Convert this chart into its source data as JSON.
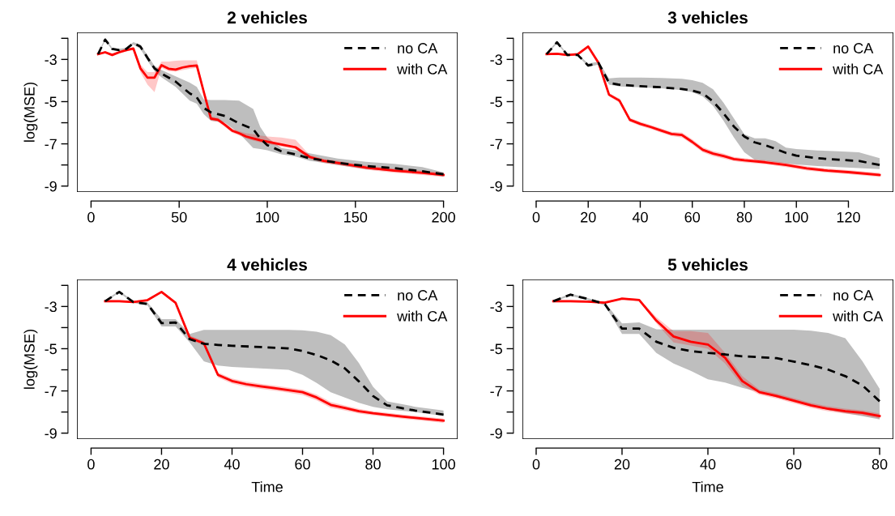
{
  "chart_data": [
    {
      "type": "line",
      "title": "2 vehicles",
      "ylabel": "log(MSE)",
      "xlim": [
        -8,
        208
      ],
      "xticks": [
        0,
        50,
        100,
        150,
        200
      ],
      "ylim": [
        -9.28,
        -1.72
      ],
      "yticks": [
        {
          "value": -2,
          "label": null
        },
        -3,
        {
          "value": -4,
          "label": null
        },
        -5,
        {
          "value": -6,
          "label": null
        },
        -7,
        {
          "value": -8,
          "label": null
        },
        -9
      ],
      "legend": "top right",
      "grid": false,
      "marker": "none",
      "series": [
        {
          "name": "no CA",
          "color": "#000000",
          "line_style": "dashed",
          "x": [
            4,
            8,
            12,
            16,
            20,
            24,
            28,
            32,
            36,
            40,
            48,
            56,
            60,
            64,
            68,
            76,
            84,
            92,
            96,
            100,
            108,
            116,
            124,
            140,
            156,
            172,
            188,
            200
          ],
          "values": [
            -2.75,
            -2.06,
            -2.5,
            -2.56,
            -2.5,
            -2.23,
            -2.39,
            -2.92,
            -3.42,
            -3.67,
            -4.05,
            -4.61,
            -4.8,
            -5.3,
            -5.51,
            -5.68,
            -6.03,
            -6.3,
            -6.74,
            -7.06,
            -7.35,
            -7.5,
            -7.68,
            -7.9,
            -8.05,
            -8.15,
            -8.3,
            -8.44
          ],
          "lower": [
            -2.8,
            -2.1,
            -2.55,
            -2.6,
            -2.55,
            -2.3,
            -2.5,
            -3.05,
            -3.55,
            -3.85,
            -4.3,
            -4.95,
            -5.1,
            -5.6,
            -5.9,
            -6.0,
            -6.5,
            -7.2,
            -7.25,
            -7.3,
            -7.5,
            -7.6,
            -7.8,
            -8.0,
            -8.2,
            -8.3,
            -8.4,
            -8.55
          ],
          "upper": [
            -2.7,
            -2.0,
            -2.45,
            -2.5,
            -2.45,
            -2.18,
            -2.3,
            -2.8,
            -3.3,
            -3.5,
            -3.8,
            -4.1,
            -4.3,
            -4.9,
            -4.92,
            -4.92,
            -4.95,
            -5.35,
            -6.2,
            -6.7,
            -7.2,
            -7.3,
            -7.45,
            -7.7,
            -7.85,
            -7.95,
            -8.1,
            -8.35
          ]
        },
        {
          "name": "with CA",
          "color": "#ff0000",
          "line_style": "solid",
          "x": [
            4,
            8,
            12,
            16,
            20,
            24,
            28,
            32,
            36,
            40,
            44,
            48,
            52,
            56,
            60,
            64,
            68,
            72,
            76,
            80,
            84,
            88,
            92,
            96,
            100,
            108,
            116,
            124,
            132,
            140,
            156,
            172,
            188,
            200
          ],
          "values": [
            -2.75,
            -2.66,
            -2.79,
            -2.66,
            -2.56,
            -2.48,
            -3.42,
            -3.86,
            -3.86,
            -3.27,
            -3.44,
            -3.48,
            -3.38,
            -3.32,
            -3.29,
            -4.55,
            -5.8,
            -5.86,
            -6.1,
            -6.37,
            -6.5,
            -6.65,
            -6.74,
            -6.83,
            -6.9,
            -7.03,
            -7.16,
            -7.62,
            -7.81,
            -7.9,
            -8.12,
            -8.27,
            -8.37,
            -8.47
          ],
          "lower": [
            -2.8,
            -2.72,
            -2.85,
            -2.72,
            -2.62,
            -2.55,
            -3.6,
            -4.2,
            -4.55,
            -3.4,
            -3.55,
            -3.58,
            -3.5,
            -3.45,
            -3.4,
            -4.7,
            -5.9,
            -5.95,
            -6.2,
            -6.47,
            -6.6,
            -6.75,
            -6.84,
            -6.93,
            -7.0,
            -7.13,
            -7.26,
            -7.72,
            -7.9,
            -8.0,
            -8.22,
            -8.37,
            -8.47,
            -8.57
          ],
          "upper": [
            -2.7,
            -2.6,
            -2.73,
            -2.6,
            -2.5,
            -2.42,
            -3.25,
            -3.6,
            -3.6,
            -3.1,
            -3.1,
            -3.06,
            -3.04,
            -3.04,
            -3.04,
            -4.4,
            -5.7,
            -5.76,
            -6.0,
            -6.27,
            -6.4,
            -6.5,
            -6.55,
            -6.6,
            -6.65,
            -6.7,
            -6.8,
            -7.52,
            -7.72,
            -7.8,
            -8.02,
            -8.17,
            -8.27,
            -8.37
          ]
        }
      ]
    },
    {
      "type": "line",
      "title": "3 vehicles",
      "xlim": [
        -5.28,
        137.28
      ],
      "xticks": [
        0,
        20,
        40,
        60,
        80,
        100,
        120
      ],
      "ylim": [
        -9.28,
        -1.72
      ],
      "yticks": [
        {
          "value": -2,
          "label": null
        },
        -3,
        {
          "value": -4,
          "label": null
        },
        -5,
        {
          "value": -6,
          "label": null
        },
        -7,
        {
          "value": -8,
          "label": null
        },
        -9
      ],
      "legend": "top right",
      "grid": false,
      "marker": "none",
      "series": [
        {
          "name": "no CA",
          "color": "#000000",
          "line_style": "dashed",
          "x": [
            4,
            8,
            12,
            16,
            20,
            24,
            28,
            32,
            40,
            48,
            56,
            60,
            64,
            68,
            72,
            76,
            80,
            84,
            88,
            92,
            96,
            100,
            108,
            116,
            124,
            132
          ],
          "values": [
            -2.75,
            -2.19,
            -2.79,
            -2.79,
            -3.29,
            -3.17,
            -4.11,
            -4.2,
            -4.27,
            -4.32,
            -4.4,
            -4.48,
            -4.61,
            -4.99,
            -5.55,
            -6.18,
            -6.65,
            -6.93,
            -7.06,
            -7.24,
            -7.43,
            -7.56,
            -7.68,
            -7.75,
            -7.81,
            -8.0
          ],
          "lower": [
            -2.78,
            -2.25,
            -2.82,
            -2.82,
            -3.35,
            -3.25,
            -4.2,
            -4.28,
            -4.32,
            -4.37,
            -4.45,
            -4.55,
            -4.75,
            -5.2,
            -5.9,
            -6.7,
            -7.4,
            -7.75,
            -7.8,
            -7.88,
            -7.93,
            -7.98,
            -8.05,
            -8.1,
            -8.15,
            -8.2
          ],
          "upper": [
            -2.72,
            -2.12,
            -2.75,
            -2.75,
            -3.2,
            -3.1,
            -3.9,
            -3.86,
            -3.86,
            -3.88,
            -3.92,
            -3.98,
            -4.11,
            -4.42,
            -5.05,
            -5.8,
            -6.55,
            -6.74,
            -6.74,
            -6.87,
            -7.18,
            -7.25,
            -7.31,
            -7.35,
            -7.4,
            -7.68
          ]
        },
        {
          "name": "with CA",
          "color": "#ff0000",
          "line_style": "solid",
          "x": [
            4,
            8,
            12,
            16,
            20,
            24,
            28,
            32,
            36,
            40,
            44,
            48,
            52,
            56,
            60,
            64,
            68,
            72,
            76,
            80,
            88,
            96,
            104,
            112,
            120,
            132
          ],
          "values": [
            -2.75,
            -2.73,
            -2.79,
            -2.75,
            -2.39,
            -3.17,
            -4.67,
            -4.95,
            -5.86,
            -6.05,
            -6.2,
            -6.37,
            -6.53,
            -6.58,
            -6.91,
            -7.28,
            -7.46,
            -7.58,
            -7.72,
            -7.78,
            -7.87,
            -8.0,
            -8.16,
            -8.27,
            -8.34,
            -8.47
          ],
          "lower": [
            -2.8,
            -2.78,
            -2.84,
            -2.8,
            -2.44,
            -3.22,
            -4.75,
            -5.05,
            -5.95,
            -6.15,
            -6.3,
            -6.47,
            -6.63,
            -6.7,
            -7.03,
            -7.4,
            -7.58,
            -7.7,
            -7.82,
            -7.88,
            -7.97,
            -8.1,
            -8.26,
            -8.37,
            -8.44,
            -8.57
          ],
          "upper": [
            -2.7,
            -2.68,
            -2.74,
            -2.7,
            -2.34,
            -3.12,
            -4.59,
            -4.85,
            -5.77,
            -5.95,
            -6.1,
            -6.27,
            -6.43,
            -6.46,
            -6.79,
            -7.16,
            -7.34,
            -7.46,
            -7.62,
            -7.68,
            -7.77,
            -7.9,
            -8.06,
            -8.17,
            -8.24,
            -8.37
          ]
        }
      ]
    },
    {
      "type": "line",
      "title": "4 vehicles",
      "xlabel": "Time",
      "ylabel": "log(MSE)",
      "xlim": [
        -4,
        104
      ],
      "xticks": [
        0,
        20,
        40,
        60,
        80,
        100
      ],
      "ylim": [
        -9.28,
        -1.72
      ],
      "yticks": [
        {
          "value": -2,
          "label": null
        },
        -3,
        {
          "value": -4,
          "label": null
        },
        -5,
        {
          "value": -6,
          "label": null
        },
        -7,
        {
          "value": -8,
          "label": null
        },
        -9
      ],
      "legend": "top right",
      "grid": false,
      "marker": "none",
      "series": [
        {
          "name": "no CA",
          "color": "#000000",
          "line_style": "dashed",
          "x": [
            4,
            8,
            12,
            16,
            20,
            24,
            28,
            32,
            36,
            40,
            48,
            56,
            60,
            64,
            68,
            72,
            76,
            80,
            84,
            88,
            92,
            100
          ],
          "values": [
            -2.75,
            -2.31,
            -2.79,
            -2.88,
            -3.79,
            -3.76,
            -4.55,
            -4.77,
            -4.82,
            -4.86,
            -4.92,
            -4.99,
            -5.11,
            -5.3,
            -5.55,
            -5.93,
            -6.55,
            -7.24,
            -7.68,
            -7.81,
            -7.93,
            -8.12
          ],
          "lower": [
            -2.78,
            -2.35,
            -2.83,
            -2.95,
            -3.95,
            -3.95,
            -4.7,
            -5.6,
            -5.8,
            -5.86,
            -5.93,
            -6.0,
            -6.24,
            -6.62,
            -7.06,
            -7.31,
            -7.56,
            -7.75,
            -7.87,
            -7.94,
            -8.0,
            -8.19
          ],
          "upper": [
            -2.72,
            -2.25,
            -2.75,
            -2.8,
            -3.6,
            -3.6,
            -4.3,
            -4.11,
            -4.11,
            -4.11,
            -4.11,
            -4.11,
            -4.13,
            -4.2,
            -4.36,
            -4.8,
            -5.68,
            -6.8,
            -7.5,
            -7.62,
            -7.75,
            -7.93
          ]
        },
        {
          "name": "with CA",
          "color": "#ff0000",
          "line_style": "solid",
          "x": [
            4,
            8,
            12,
            16,
            20,
            24,
            28,
            32,
            36,
            40,
            44,
            48,
            52,
            56,
            60,
            64,
            68,
            72,
            76,
            80,
            88,
            100
          ],
          "values": [
            -2.75,
            -2.75,
            -2.79,
            -2.7,
            -2.31,
            -2.83,
            -4.48,
            -4.74,
            -6.24,
            -6.53,
            -6.68,
            -6.78,
            -6.87,
            -6.96,
            -7.06,
            -7.31,
            -7.66,
            -7.81,
            -7.96,
            -8.06,
            -8.21,
            -8.41
          ],
          "lower": [
            -2.8,
            -2.8,
            -2.84,
            -2.75,
            -2.36,
            -2.88,
            -4.58,
            -4.84,
            -6.36,
            -6.65,
            -6.8,
            -6.9,
            -6.99,
            -7.08,
            -7.2,
            -7.45,
            -7.8,
            -7.93,
            -8.07,
            -8.16,
            -8.31,
            -8.51
          ],
          "upper": [
            -2.7,
            -2.7,
            -2.74,
            -2.65,
            -2.26,
            -2.78,
            -4.38,
            -4.64,
            -6.12,
            -6.41,
            -6.56,
            -6.66,
            -6.75,
            -6.84,
            -6.94,
            -7.17,
            -7.52,
            -7.69,
            -7.85,
            -7.96,
            -8.11,
            -8.31
          ]
        }
      ]
    },
    {
      "type": "line",
      "title": "5 vehicles",
      "xlabel": "Time",
      "xlim": [
        -3.2,
        83.2
      ],
      "xticks": [
        0,
        20,
        40,
        60,
        80
      ],
      "ylim": [
        -9.28,
        -1.72
      ],
      "yticks": [
        {
          "value": -2,
          "label": null
        },
        -3,
        {
          "value": -4,
          "label": null
        },
        -5,
        {
          "value": -6,
          "label": null
        },
        -7,
        {
          "value": -8,
          "label": null
        },
        -9
      ],
      "legend": "top right",
      "grid": false,
      "marker": "none",
      "series": [
        {
          "name": "no CA",
          "color": "#000000",
          "line_style": "dashed",
          "x": [
            4,
            8,
            12,
            16,
            20,
            24,
            28,
            32,
            36,
            40,
            44,
            48,
            52,
            56,
            60,
            64,
            68,
            72,
            76,
            80
          ],
          "values": [
            -2.75,
            -2.44,
            -2.64,
            -2.89,
            -4.05,
            -4.05,
            -4.67,
            -4.96,
            -5.11,
            -5.2,
            -5.27,
            -5.36,
            -5.4,
            -5.45,
            -5.61,
            -5.78,
            -5.99,
            -6.3,
            -6.74,
            -7.49
          ],
          "lower": [
            -2.78,
            -2.5,
            -2.7,
            -2.95,
            -4.3,
            -4.3,
            -5.2,
            -5.7,
            -6.05,
            -6.45,
            -6.6,
            -6.85,
            -7.05,
            -7.3,
            -7.5,
            -7.7,
            -7.9,
            -8.05,
            -8.2,
            -8.35
          ],
          "upper": [
            -2.72,
            -2.38,
            -2.6,
            -2.82,
            -3.8,
            -3.75,
            -4.08,
            -4.1,
            -4.1,
            -4.1,
            -4.1,
            -4.1,
            -4.1,
            -4.1,
            -4.1,
            -4.15,
            -4.25,
            -4.5,
            -5.6,
            -6.9
          ]
        },
        {
          "name": "with CA",
          "color": "#ff0000",
          "line_style": "solid",
          "x": [
            4,
            8,
            12,
            16,
            20,
            24,
            28,
            32,
            36,
            40,
            44,
            48,
            52,
            56,
            60,
            64,
            68,
            72,
            76,
            80
          ],
          "values": [
            -2.75,
            -2.75,
            -2.77,
            -2.82,
            -2.63,
            -2.69,
            -3.67,
            -4.42,
            -4.67,
            -4.8,
            -5.43,
            -6.53,
            -7.06,
            -7.24,
            -7.46,
            -7.68,
            -7.85,
            -7.96,
            -8.04,
            -8.19
          ],
          "lower": [
            -2.8,
            -2.8,
            -2.82,
            -2.87,
            -2.68,
            -2.74,
            -3.8,
            -4.7,
            -4.85,
            -5.0,
            -5.7,
            -6.75,
            -7.18,
            -7.36,
            -7.58,
            -7.8,
            -7.97,
            -8.08,
            -8.16,
            -8.31
          ],
          "upper": [
            -2.7,
            -2.7,
            -2.72,
            -2.77,
            -2.58,
            -2.64,
            -3.5,
            -4.17,
            -4.17,
            -4.25,
            -5.2,
            -6.3,
            -6.94,
            -7.12,
            -7.34,
            -7.56,
            -7.73,
            -7.84,
            -7.92,
            -8.07
          ]
        }
      ]
    }
  ]
}
